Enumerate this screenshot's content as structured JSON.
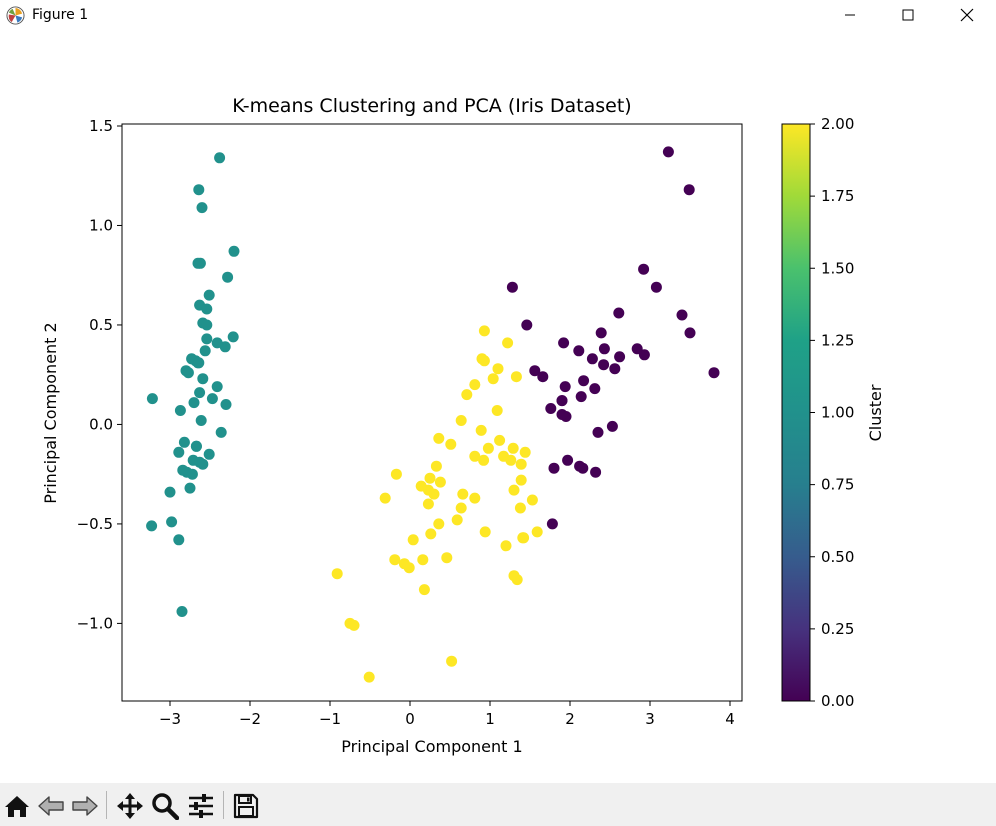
{
  "window": {
    "title": "Figure 1",
    "icons": {
      "app": "matplotlib-icon",
      "minimize": "minimize-icon",
      "maximize": "maximize-icon",
      "close": "close-icon"
    }
  },
  "toolbar": {
    "buttons": [
      {
        "name": "home-button",
        "icon": "home-icon"
      },
      {
        "name": "back-button",
        "icon": "back-arrow-icon"
      },
      {
        "name": "forward-button",
        "icon": "forward-arrow-icon"
      },
      {
        "name": "pan-button",
        "icon": "pan-move-icon"
      },
      {
        "name": "zoom-button",
        "icon": "zoom-magnifier-icon"
      },
      {
        "name": "subplots-button",
        "icon": "configure-subplots-icon"
      },
      {
        "name": "save-button",
        "icon": "save-disk-icon"
      }
    ]
  },
  "chart_data": {
    "type": "scatter",
    "title": "K-means Clustering and PCA (Iris Dataset)",
    "xlabel": "Principal Component 1",
    "ylabel": "Principal Component 2",
    "xlim": [
      -3.6,
      4.15
    ],
    "ylim": [
      -1.39,
      1.51
    ],
    "xticks": [
      -3,
      -2,
      -1,
      0,
      1,
      2,
      3,
      4
    ],
    "xtick_labels": [
      "−3",
      "−2",
      "−1",
      "0",
      "1",
      "2",
      "3",
      "4"
    ],
    "yticks": [
      -1.0,
      -0.5,
      0.0,
      0.5,
      1.0,
      1.5
    ],
    "ytick_labels": [
      "−1.0",
      "−0.5",
      "0.0",
      "0.5",
      "1.0",
      "1.5"
    ],
    "grid": false,
    "colormap": "viridis",
    "colorbar": {
      "label": "Cluster",
      "range": [
        0,
        2
      ],
      "ticks": [
        0.0,
        0.25,
        0.5,
        0.75,
        1.0,
        1.25,
        1.5,
        1.75,
        2.0
      ],
      "tick_labels": [
        "0.00",
        "0.25",
        "0.50",
        "0.75",
        "1.00",
        "1.25",
        "1.50",
        "1.75",
        "2.00"
      ]
    },
    "cluster_colors": {
      "0": "#440154",
      "1": "#21918c",
      "2": "#fde725"
    },
    "points": [
      [
        -2.68,
        0.32,
        1
      ],
      [
        -2.71,
        -0.18,
        1
      ],
      [
        -2.89,
        -0.14,
        1
      ],
      [
        -2.75,
        -0.32,
        1
      ],
      [
        -2.73,
        0.33,
        1
      ],
      [
        -2.28,
        0.74,
        1
      ],
      [
        -2.82,
        -0.09,
        1
      ],
      [
        -2.63,
        0.16,
        1
      ],
      [
        -2.89,
        -0.58,
        1
      ],
      [
        -2.67,
        -0.11,
        1
      ],
      [
        -2.51,
        0.65,
        1
      ],
      [
        -2.61,
        0.02,
        1
      ],
      [
        -2.79,
        -0.24,
        1
      ],
      [
        -3.23,
        -0.51,
        1
      ],
      [
        -2.64,
        1.18,
        1
      ],
      [
        -2.38,
        1.34,
        1
      ],
      [
        -2.62,
        0.81,
        1
      ],
      [
        -2.65,
        0.31,
        1
      ],
      [
        -2.2,
        0.87,
        1
      ],
      [
        -2.59,
        0.51,
        1
      ],
      [
        -2.31,
        0.39,
        1
      ],
      [
        -2.54,
        0.43,
        1
      ],
      [
        -3.22,
        0.13,
        1
      ],
      [
        -2.3,
        0.1,
        1
      ],
      [
        -2.36,
        -0.04,
        1
      ],
      [
        -2.51,
        -0.15,
        1
      ],
      [
        -2.47,
        0.13,
        1
      ],
      [
        -2.56,
        0.37,
        1
      ],
      [
        -2.64,
        0.31,
        1
      ],
      [
        -2.63,
        -0.19,
        1
      ],
      [
        -2.59,
        -0.2,
        1
      ],
      [
        -2.41,
        0.41,
        1
      ],
      [
        -2.65,
        0.81,
        1
      ],
      [
        -2.6,
        1.09,
        1
      ],
      [
        -2.67,
        -0.11,
        1
      ],
      [
        -2.87,
        0.07,
        1
      ],
      [
        -2.63,
        0.6,
        1
      ],
      [
        -2.8,
        0.27,
        1
      ],
      [
        -2.98,
        -0.49,
        1
      ],
      [
        -2.59,
        0.23,
        1
      ],
      [
        -2.77,
        0.26,
        1
      ],
      [
        -2.85,
        -0.94,
        1
      ],
      [
        -3.0,
        -0.34,
        1
      ],
      [
        -2.41,
        0.19,
        1
      ],
      [
        -2.21,
        0.44,
        1
      ],
      [
        -2.72,
        -0.25,
        1
      ],
      [
        -2.54,
        0.5,
        1
      ],
      [
        -2.84,
        -0.23,
        1
      ],
      [
        -2.54,
        0.58,
        1
      ],
      [
        -2.7,
        0.11,
        1
      ],
      [
        1.28,
        0.69,
        0
      ],
      [
        0.93,
        0.32,
        2
      ],
      [
        1.46,
        0.5,
        0
      ],
      [
        0.18,
        -0.83,
        2
      ],
      [
        1.09,
        0.07,
        2
      ],
      [
        0.64,
        -0.42,
        2
      ],
      [
        1.1,
        0.28,
        2
      ],
      [
        -0.75,
        -1.0,
        2
      ],
      [
        1.04,
        0.23,
        2
      ],
      [
        -0.01,
        -0.72,
        2
      ],
      [
        -0.51,
        -1.27,
        2
      ],
      [
        0.51,
        -0.1,
        2
      ],
      [
        0.26,
        -0.55,
        2
      ],
      [
        0.98,
        -0.12,
        2
      ],
      [
        -0.17,
        -0.25,
        2
      ],
      [
        0.93,
        0.47,
        2
      ],
      [
        0.66,
        -0.35,
        2
      ],
      [
        0.23,
        -0.33,
        2
      ],
      [
        0.94,
        -0.54,
        2
      ],
      [
        0.04,
        -0.58,
        2
      ],
      [
        1.12,
        -0.08,
        2
      ],
      [
        0.36,
        -0.07,
        2
      ],
      [
        1.3,
        -0.33,
        2
      ],
      [
        0.92,
        -0.18,
        2
      ],
      [
        0.71,
        0.15,
        2
      ],
      [
        0.9,
        0.33,
        2
      ],
      [
        1.33,
        0.24,
        2
      ],
      [
        1.56,
        0.27,
        0
      ],
      [
        0.81,
        -0.16,
        2
      ],
      [
        -0.31,
        -0.37,
        2
      ],
      [
        -0.07,
        -0.7,
        2
      ],
      [
        -0.19,
        -0.68,
        2
      ],
      [
        0.14,
        -0.31,
        2
      ],
      [
        1.38,
        -0.42,
        2
      ],
      [
        0.59,
        -0.48,
        2
      ],
      [
        0.81,
        0.2,
        2
      ],
      [
        1.22,
        0.41,
        2
      ],
      [
        0.81,
        -0.37,
        2
      ],
      [
        0.25,
        -0.27,
        2
      ],
      [
        0.16,
        -0.68,
        2
      ],
      [
        0.46,
        -0.67,
        2
      ],
      [
        0.89,
        -0.03,
        2
      ],
      [
        0.23,
        -0.4,
        2
      ],
      [
        -0.7,
        -1.01,
        2
      ],
      [
        0.36,
        -0.5,
        2
      ],
      [
        0.33,
        -0.21,
        2
      ],
      [
        0.38,
        -0.29,
        2
      ],
      [
        0.64,
        0.02,
        2
      ],
      [
        -0.91,
        -0.75,
        2
      ],
      [
        0.3,
        -0.35,
        2
      ],
      [
        2.53,
        -0.01,
        0
      ],
      [
        1.41,
        -0.57,
        2
      ],
      [
        2.62,
        0.34,
        0
      ],
      [
        1.97,
        -0.18,
        0
      ],
      [
        2.35,
        -0.04,
        0
      ],
      [
        3.4,
        0.55,
        0
      ],
      [
        0.52,
        -1.19,
        2
      ],
      [
        2.93,
        0.35,
        0
      ],
      [
        2.32,
        -0.24,
        0
      ],
      [
        2.92,
        0.78,
        0
      ],
      [
        1.66,
        0.24,
        0
      ],
      [
        1.8,
        -0.22,
        0
      ],
      [
        2.17,
        0.22,
        0
      ],
      [
        1.34,
        -0.78,
        2
      ],
      [
        1.59,
        -0.54,
        2
      ],
      [
        1.9,
        0.12,
        0
      ],
      [
        1.95,
        0.04,
        0
      ],
      [
        3.49,
        1.18,
        0
      ],
      [
        3.8,
        0.26,
        0
      ],
      [
        1.3,
        -0.76,
        2
      ],
      [
        2.43,
        0.38,
        0
      ],
      [
        1.2,
        -0.61,
        2
      ],
      [
        3.5,
        0.46,
        0
      ],
      [
        1.39,
        -0.2,
        2
      ],
      [
        2.28,
        0.33,
        0
      ],
      [
        2.61,
        0.56,
        0
      ],
      [
        1.26,
        -0.18,
        2
      ],
      [
        1.29,
        -0.12,
        2
      ],
      [
        2.12,
        -0.21,
        0
      ],
      [
        2.39,
        0.46,
        0
      ],
      [
        2.84,
        0.38,
        0
      ],
      [
        3.23,
        1.37,
        0
      ],
      [
        2.16,
        -0.22,
        0
      ],
      [
        1.44,
        -0.14,
        2
      ],
      [
        1.78,
        -0.5,
        0
      ],
      [
        3.08,
        0.69,
        0
      ],
      [
        2.14,
        0.14,
        0
      ],
      [
        1.9,
        0.05,
        0
      ],
      [
        1.17,
        -0.16,
        2
      ],
      [
        2.11,
        0.37,
        0
      ],
      [
        2.31,
        0.18,
        0
      ],
      [
        1.92,
        0.41,
        0
      ],
      [
        1.42,
        -0.57,
        2
      ],
      [
        2.56,
        0.28,
        0
      ],
      [
        2.42,
        0.3,
        0
      ],
      [
        1.94,
        0.19,
        0
      ],
      [
        1.53,
        -0.38,
        2
      ],
      [
        1.76,
        0.08,
        0
      ],
      [
        1.9,
        0.12,
        0
      ],
      [
        1.39,
        -0.28,
        2
      ]
    ]
  }
}
